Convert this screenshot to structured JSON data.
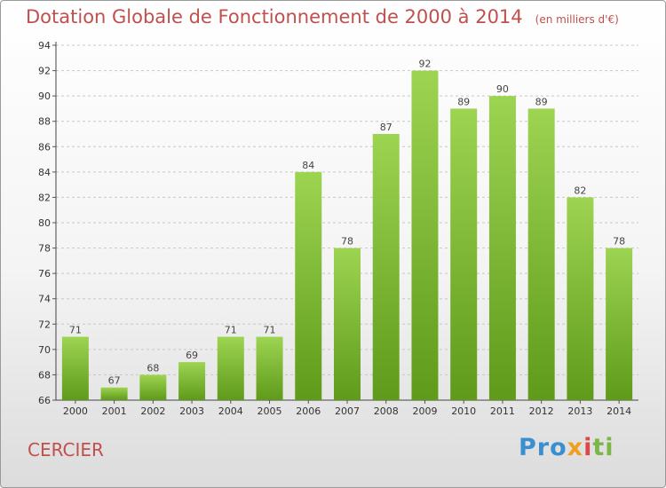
{
  "header": {
    "title": "Dotation Globale de Fonctionnement de 2000 à 2014",
    "unit": "(en milliers d'€)"
  },
  "commune": "CERCIER",
  "logo": {
    "p1": "Pro",
    "p2": "x",
    "p3": "i",
    "p4": "ti"
  },
  "colors": {
    "title": "#c0504d",
    "bar_top": "#9dd452",
    "bar_bottom": "#5f9a1a"
  },
  "chart_data": {
    "type": "bar",
    "title": "Dotation Globale de Fonctionnement de 2000 à 2014",
    "categories": [
      "2000",
      "2001",
      "2002",
      "2003",
      "2004",
      "2005",
      "2006",
      "2007",
      "2008",
      "2009",
      "2010",
      "2011",
      "2012",
      "2013",
      "2014"
    ],
    "values": [
      71,
      67,
      68,
      69,
      71,
      71,
      84,
      78,
      87,
      92,
      89,
      90,
      89,
      82,
      78
    ],
    "ylim": [
      66,
      94
    ],
    "yticks": [
      66,
      68,
      70,
      72,
      74,
      76,
      78,
      80,
      82,
      84,
      86,
      88,
      90,
      92,
      94
    ],
    "grid": true,
    "data_labels": true
  }
}
